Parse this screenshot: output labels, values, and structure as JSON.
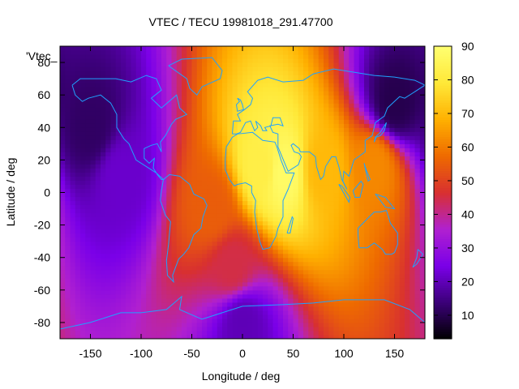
{
  "chart_data": {
    "type": "heatmap",
    "title": "VTEC / TECU 19981018_291.47700",
    "series_label": "'Vtec_",
    "xlabel": "Longitude / deg",
    "ylabel": "Latitude / deg",
    "xlim": [
      -180,
      180
    ],
    "ylim": [
      -90,
      90
    ],
    "x_ticks": [
      -150,
      -100,
      -50,
      0,
      50,
      100,
      150
    ],
    "y_ticks": [
      -80,
      -60,
      -40,
      -20,
      0,
      20,
      40,
      60,
      80
    ],
    "colorbar": {
      "range": [
        3,
        90
      ],
      "ticks": [
        10,
        20,
        30,
        40,
        50,
        60,
        70,
        80,
        90
      ],
      "palette": [
        "#000000",
        "#3b0078",
        "#7a00e8",
        "#b020d0",
        "#d83030",
        "#ee6a00",
        "#ffb000",
        "#ffe838",
        "#ffff70"
      ]
    },
    "field_description_points": [
      {
        "lon": 40,
        "lat": 12,
        "vtec": 88
      },
      {
        "lon": 20,
        "lat": 15,
        "vtec": 82
      },
      {
        "lon": 80,
        "lat": 14,
        "vtec": 70
      },
      {
        "lon": 130,
        "lat": 17,
        "vtec": 62
      },
      {
        "lon": -30,
        "lat": -10,
        "vtec": 55
      },
      {
        "lon": -10,
        "lat": -45,
        "vtec": 45
      },
      {
        "lon": -120,
        "lat": 10,
        "vtec": 22
      },
      {
        "lon": -150,
        "lat": 40,
        "vtec": 12
      },
      {
        "lon": 150,
        "lat": 55,
        "vtec": 10
      },
      {
        "lon": 0,
        "lat": -80,
        "vtec": 20
      }
    ],
    "overlay": "coastlines",
    "overlay_color": "#1fa2ff",
    "grid": false
  }
}
